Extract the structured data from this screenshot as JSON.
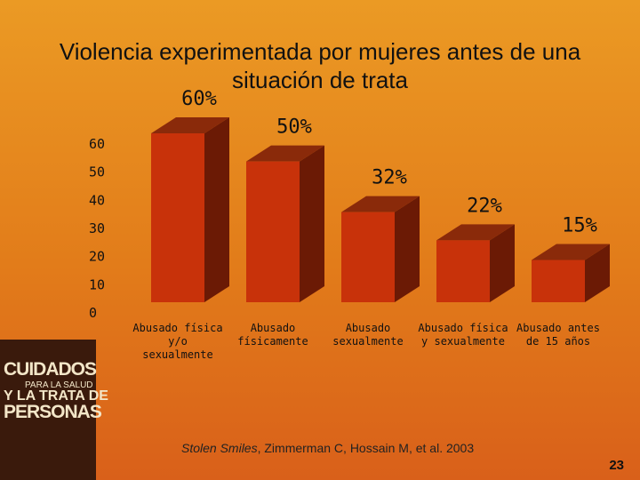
{
  "chart_data": {
    "type": "bar3d",
    "title": "Violencia experimentada por mujeres antes de una situación de trata",
    "categories": [
      "Abusado física y/o sexualmente",
      "Abusado físicamente",
      "Abusado sexualmente",
      "Abusado física y sexualmente",
      "Abusado antes de 15 años"
    ],
    "values": [
      60,
      50,
      32,
      22,
      15
    ],
    "value_labels": [
      "60%",
      "50%",
      "32%",
      "22%",
      "15%"
    ],
    "color": "#c8320a",
    "ylim": [
      0,
      60
    ],
    "yticks": [
      0,
      10,
      20,
      30,
      40,
      50,
      60
    ]
  },
  "source": {
    "title": "Stolen Smiles",
    "rest": ", Zimmerman C, Hossain M, et al. 2003"
  },
  "page_number": "23",
  "cover": {
    "lines": [
      "CUIDADOS",
      "PARA LA SALUD",
      "Y LA TRATA DE",
      "PERSONAS"
    ]
  }
}
